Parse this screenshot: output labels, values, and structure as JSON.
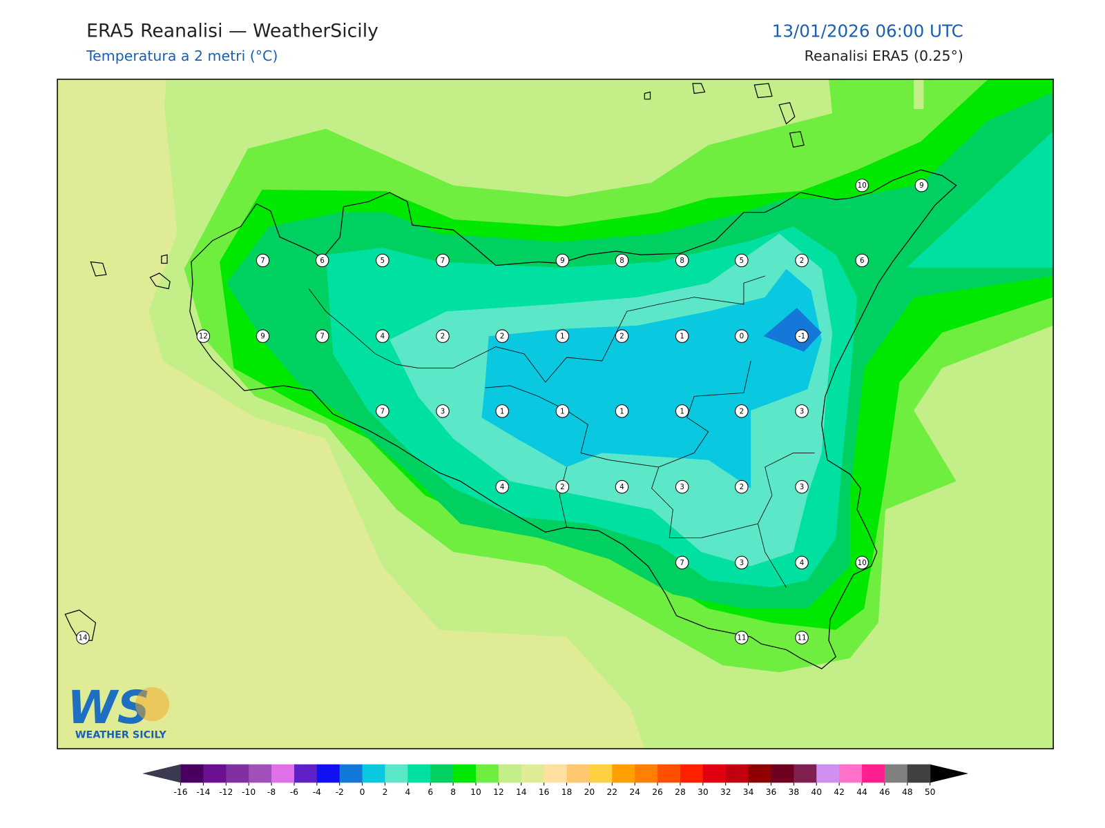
{
  "header": {
    "title": "ERA5 Reanalisi — WeatherSicily",
    "subtitle": "Temperatura a 2 metri (°C)",
    "datetime": "13/01/2026 06:00 UTC",
    "source": "Reanalisi ERA5 (0.25°)"
  },
  "stations": [
    10,
    9,
    7,
    6,
    5,
    7,
    9,
    8,
    8,
    5,
    2,
    6,
    12,
    9,
    7,
    4,
    2,
    2,
    1,
    2,
    1,
    0,
    -1,
    7,
    3,
    1,
    1,
    1,
    1,
    2,
    3,
    4,
    2,
    4,
    3,
    2,
    3,
    7,
    3,
    4,
    10,
    14,
    11,
    11
  ],
  "colorbar": {
    "ticks": [
      -16,
      -14,
      -12,
      -10,
      -8,
      -6,
      -4,
      -2,
      0,
      2,
      4,
      6,
      8,
      10,
      12,
      14,
      16,
      18,
      20,
      22,
      24,
      26,
      28,
      30,
      32,
      34,
      36,
      38,
      40,
      42,
      44,
      46,
      48,
      50
    ],
    "colors": [
      "#4a0060",
      "#6a1090",
      "#8030a0",
      "#a050b8",
      "#e070e8",
      "#6020c8",
      "#1010f0",
      "#1478d8",
      "#0ac8e0",
      "#5ce8c8",
      "#00e0a0",
      "#00d060",
      "#00e800",
      "#70ee40",
      "#c4ee88",
      "#e0eb95",
      "#ffe0a0",
      "#ffc870",
      "#ffd040",
      "#ffa000",
      "#ff8000",
      "#ff5000",
      "#ff2000",
      "#e00010",
      "#c00010",
      "#900000",
      "#700020",
      "#802050",
      "#d090f0",
      "#ff70c8",
      "#ff2090",
      "#808080",
      "#404040"
    ],
    "under_color": "#3a3a50",
    "over_color": "#000000"
  },
  "logo": {
    "mark": "WS",
    "name": "WEATHER SICILY"
  }
}
